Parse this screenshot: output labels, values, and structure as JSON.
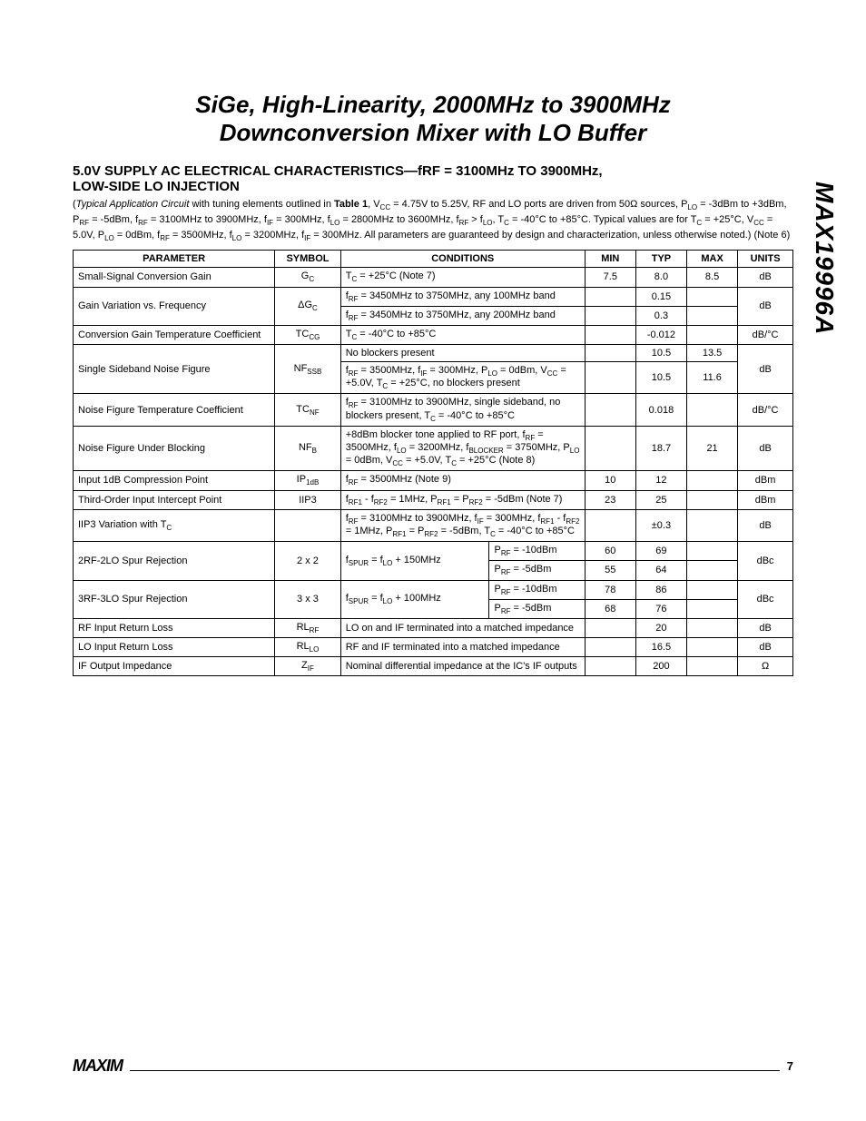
{
  "side_label": "MAX19996A",
  "title_line1": "SiGe, High-Linearity, 2000MHz to 3900MHz",
  "title_line2": "Downconversion Mixer with LO Buffer",
  "section_heading_1": "5.0V SUPPLY AC ELECTRICAL CHARACTERISTICS—fRF = 3100MHz TO 3900MHz,",
  "section_heading_2": "LOW-SIDE LO INJECTION",
  "intro_html": "(<span class='ital'>Typical Application Circuit</span> with tuning elements outlined in <b>Table 1</b>, V<sub>CC</sub> = 4.75V to 5.25V, RF and LO ports are driven from 50Ω sources, P<sub>LO</sub> = -3dBm to +3dBm, P<sub>RF</sub> = -5dBm, f<sub>RF</sub> = 3100MHz to 3900MHz, f<sub>IF</sub> = 300MHz, f<sub>LO</sub> = 2800MHz to 3600MHz, f<sub>RF</sub> &gt; f<sub>LO</sub>, T<sub>C</sub> = -40°C to +85°C. Typical values are for T<sub>C</sub> = +25°C, V<sub>CC</sub> = 5.0V, P<sub>LO</sub> = 0dBm, f<sub>RF</sub> = 3500MHz, f<sub>LO</sub> = 3200MHz, f<sub>IF</sub> = 300MHz. All parameters are guaranteed by design and characterization, unless otherwise noted.) (Note 6)",
  "headers": {
    "param": "PARAMETER",
    "sym": "SYMBOL",
    "cond": "CONDITIONS",
    "min": "MIN",
    "typ": "TYP",
    "max": "MAX",
    "units": "UNITS"
  },
  "rows": {
    "r1": {
      "param": "Small-Signal Conversion Gain",
      "sym": "G<sub>C</sub>",
      "cond": "T<sub>C</sub> = +25°C (Note 7)",
      "min": "7.5",
      "typ": "8.0",
      "max": "8.5",
      "unit": "dB"
    },
    "r2a": {
      "param": "Gain Variation vs. Frequency",
      "sym": "ΔG<sub>C</sub>",
      "cond": "f<sub>RF</sub> = 3450MHz to 3750MHz, any 100MHz band",
      "typ": "0.15",
      "unit": "dB"
    },
    "r2b": {
      "cond": "f<sub>RF</sub> = 3450MHz to 3750MHz, any 200MHz band",
      "typ": "0.3"
    },
    "r3": {
      "param": "Conversion Gain Temperature Coefficient",
      "sym": "TC<sub>CG</sub>",
      "cond": "T<sub>C</sub> = -40°C to +85°C",
      "typ": "-0.012",
      "unit": "dB/°C"
    },
    "r4a": {
      "param": "Single Sideband Noise Figure",
      "sym": "NF<sub>SSB</sub>",
      "cond": "No blockers present",
      "typ": "10.5",
      "max": "13.5",
      "unit": "dB"
    },
    "r4b": {
      "cond": "f<sub>RF</sub> = 3500MHz, f<sub>IF</sub> = 300MHz, P<sub>LO</sub> = 0dBm, V<sub>CC</sub> = +5.0V, T<sub>C</sub> = +25°C, no blockers present",
      "typ": "10.5",
      "max": "11.6"
    },
    "r5": {
      "param": "Noise Figure Temperature Coefficient",
      "sym": "TC<sub>NF</sub>",
      "cond": "f<sub>RF</sub> = 3100MHz to 3900MHz, single sideband, no blockers present, T<sub>C</sub> = -40°C to +85°C",
      "typ": "0.018",
      "unit": "dB/°C"
    },
    "r6": {
      "param": "Noise Figure Under Blocking",
      "sym": "NF<sub>B</sub>",
      "cond": "+8dBm blocker tone applied to RF port, f<sub>RF</sub> = 3500MHz, f<sub>LO</sub> = 3200MHz, f<sub>BLOCKER</sub> = 3750MHz, P<sub>LO</sub> = 0dBm, V<sub>CC</sub> = +5.0V, T<sub>C</sub> = +25°C (Note 8)",
      "typ": "18.7",
      "max": "21",
      "unit": "dB"
    },
    "r7": {
      "param": "Input 1dB Compression Point",
      "sym": "IP<sub>1dB</sub>",
      "cond": "f<sub>RF</sub> = 3500MHz (Note 9)",
      "min": "10",
      "typ": "12",
      "unit": "dBm"
    },
    "r8": {
      "param": "Third-Order Input Intercept Point",
      "sym": "IIP3",
      "cond": "f<sub>RF1</sub> - f<sub>RF2</sub> = 1MHz, P<sub>RF1</sub> = P<sub>RF2</sub> = -5dBm (Note 7)",
      "min": "23",
      "typ": "25",
      "unit": "dBm"
    },
    "r9": {
      "param": "IIP3 Variation with T<sub>C</sub>",
      "sym": "",
      "cond": "f<sub>RF</sub> = 3100MHz to 3900MHz, f<sub>IF</sub> = 300MHz, f<sub>RF1</sub> - f<sub>RF2</sub> = 1MHz, P<sub>RF1</sub> = P<sub>RF2</sub> = -5dBm, T<sub>C</sub> = -40°C to +85°C",
      "typ": "±0.3",
      "unit": "dB"
    },
    "r10a": {
      "param": "2RF-2LO Spur Rejection",
      "sym": "2 x 2",
      "cond1": "f<sub>SPUR</sub> = f<sub>LO</sub> + 150MHz",
      "cond2": "P<sub>RF</sub> = -10dBm",
      "min": "60",
      "typ": "69",
      "unit": "dBc"
    },
    "r10b": {
      "cond2": "P<sub>RF</sub> = -5dBm",
      "min": "55",
      "typ": "64"
    },
    "r11a": {
      "param": "3RF-3LO Spur Rejection",
      "sym": "3 x 3",
      "cond1": "f<sub>SPUR</sub> = f<sub>LO</sub> + 100MHz",
      "cond2": "P<sub>RF</sub> = -10dBm",
      "min": "78",
      "typ": "86",
      "unit": "dBc"
    },
    "r11b": {
      "cond2": "P<sub>RF</sub> = -5dBm",
      "min": "68",
      "typ": "76"
    },
    "r12": {
      "param": "RF Input Return Loss",
      "sym": "RL<sub>RF</sub>",
      "cond": "LO on and IF terminated into a matched impedance",
      "typ": "20",
      "unit": "dB"
    },
    "r13": {
      "param": "LO Input Return Loss",
      "sym": "RL<sub>LO</sub>",
      "cond": "RF and IF terminated into a matched impedance",
      "typ": "16.5",
      "unit": "dB"
    },
    "r14": {
      "param": "IF Output Impedance",
      "sym": "Z<sub>IF</sub>",
      "cond": "Nominal differential impedance at the IC's IF outputs",
      "typ": "200",
      "unit": "Ω"
    }
  },
  "footer": {
    "logo": "MAXIM",
    "page": "7"
  }
}
